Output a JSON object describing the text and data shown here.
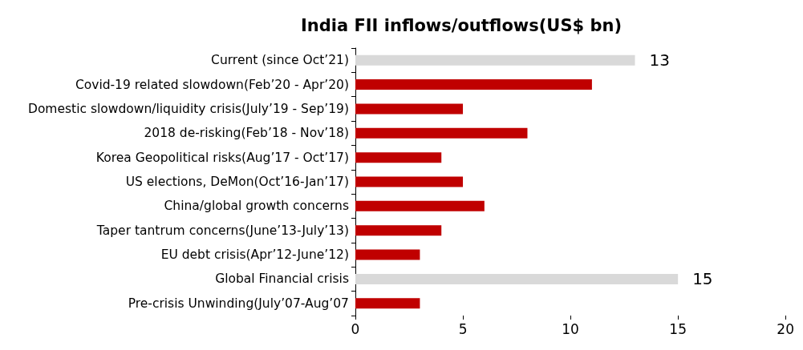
{
  "chart_data": {
    "type": "bar",
    "orientation": "horizontal",
    "title": "India FII inflows/outflows(US$ bn)",
    "categories": [
      "Current (since Oct’21)",
      "Covid-19 related slowdown(Feb’20 - Apr’20)",
      "Domestic slowdown/liquidity crisis(July’19 - Sep’19)",
      "2018 de-risking(Feb’18 - Nov’18)",
      "Korea Geopolitical risks(Aug’17 - Oct’17)",
      "US elections, DeMon(Oct’16-Jan’17)",
      "China/global growth concerns",
      "Taper tantrum concerns(June’13-July’13)",
      "EU debt crisis(Apr’12-June’12)",
      "Global Financial crisis",
      "Pre-crisis Unwinding(July’07-Aug’07"
    ],
    "values": [
      13,
      11,
      5,
      8,
      4,
      5,
      6,
      4,
      3,
      15,
      3
    ],
    "colors": [
      "#d9d9d9",
      "#c00000",
      "#c00000",
      "#c00000",
      "#c00000",
      "#c00000",
      "#c00000",
      "#c00000",
      "#c00000",
      "#d9d9d9",
      "#c00000"
    ],
    "value_labels": [
      "13",
      null,
      null,
      null,
      null,
      null,
      null,
      null,
      null,
      "15",
      null
    ],
    "xlim": [
      0,
      20
    ],
    "xticks": [
      0,
      5,
      10,
      15,
      20
    ],
    "grid": false
  }
}
